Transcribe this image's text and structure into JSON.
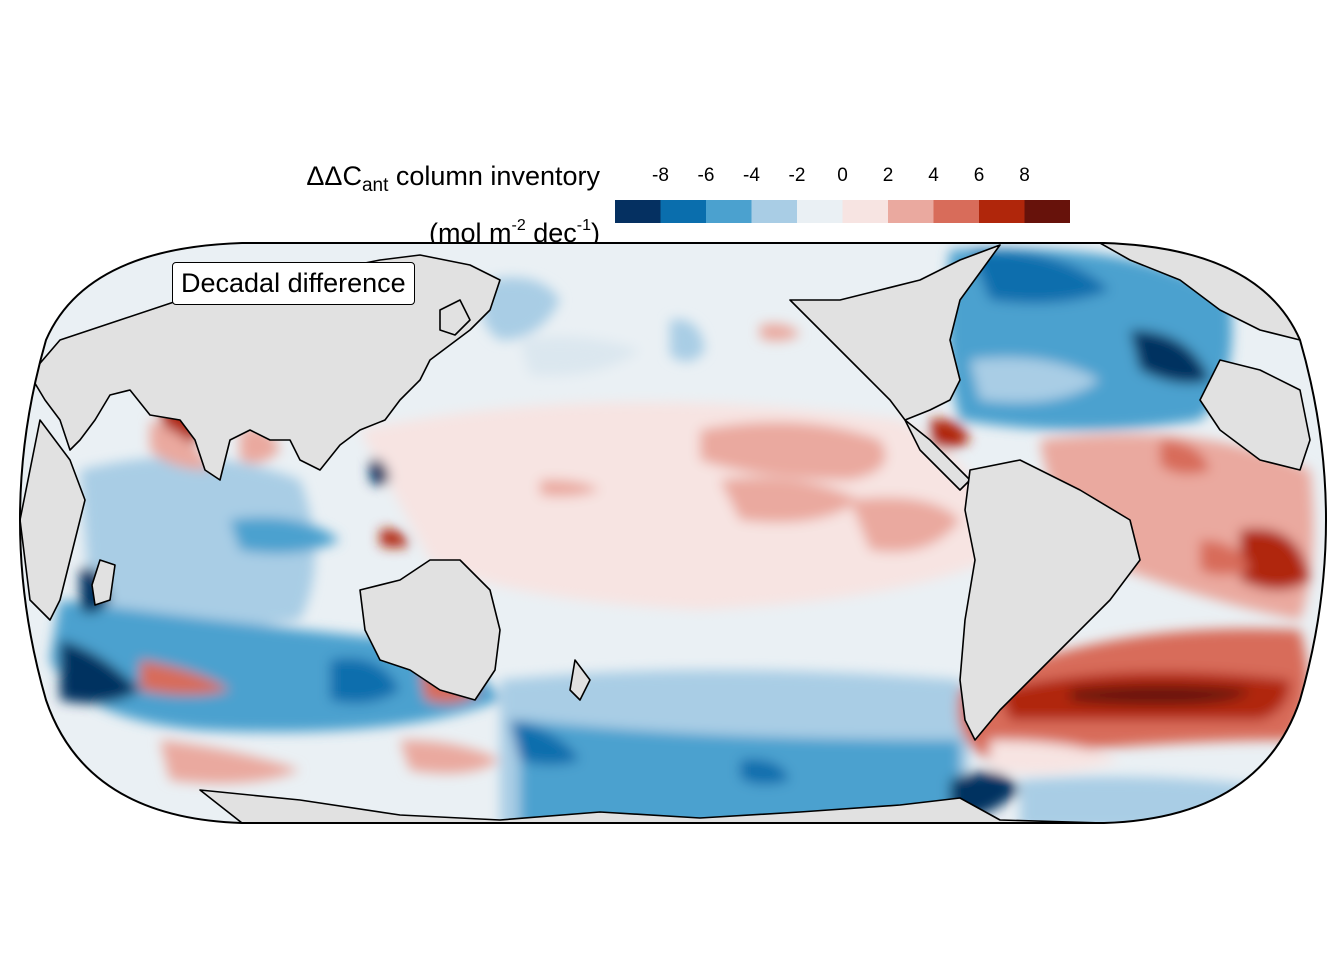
{
  "legend": {
    "title_symbol": "ΔΔC",
    "title_subscript": "ant",
    "title_rest": " column inventory",
    "unit_open": "(mol m",
    "unit_exp1": "-2",
    "unit_mid": " dec",
    "unit_exp2": "-1",
    "unit_close": ")",
    "ticks": [
      "-8",
      "-6",
      "-4",
      "-2",
      "0",
      "2",
      "4",
      "6",
      "8"
    ],
    "colors": [
      "#053061",
      "#0a6ead",
      "#4ba1cf",
      "#a9cde5",
      "#eaf0f4",
      "#f7e4e2",
      "#eaa99f",
      "#d86c5a",
      "#b0260b",
      "#67120b"
    ]
  },
  "map": {
    "panel_label": "Decadal difference",
    "land_color": "#e1e1e1",
    "projection": "Robinson (Pacific-centered)"
  }
}
